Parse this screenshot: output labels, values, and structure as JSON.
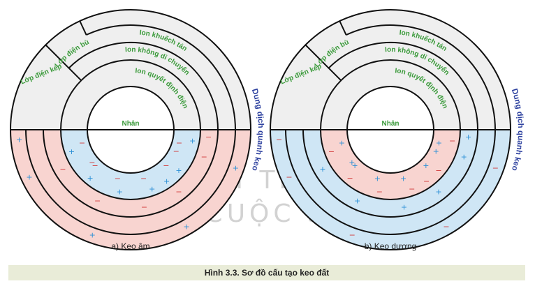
{
  "diagrams": [
    {
      "id": "a",
      "caption": "a) Keo âm",
      "core": "Nhân",
      "labels": {
        "outer_layer": "Lớp điện kép",
        "compensating_layer": "Lớp điện bù",
        "diffuse": "Ion khuếch tán",
        "fixed": "Ion không di chuyển",
        "potential": "Ion quyết định điện",
        "solution": "Dung dịch quanh keo"
      },
      "inner_sign": "−",
      "outer_sign": "+",
      "inner_color": "#cfe6f5",
      "outer_color": "#f8d4d0"
    },
    {
      "id": "b",
      "caption": "b) Keo dương",
      "core": "Nhân",
      "labels": {
        "outer_layer": "Lớp điện kép",
        "compensating_layer": "Lớp điện bù",
        "diffuse": "Ion khuếch tán",
        "fixed": "Ion không di chuyển",
        "potential": "Ion quyết định điện",
        "solution": "Dung dịch quanh keo"
      },
      "inner_sign": "+",
      "outer_sign": "−",
      "inner_color": "#f8d4d0",
      "outer_color": "#cfe6f5"
    }
  ],
  "figure_caption": "Hình 3.3. Sơ đồ cấu tạo keo đất",
  "watermark": [
    "KẾT NỐI TRI THỨC",
    "VỚI CUỘC SỐNG"
  ],
  "colors": {
    "upper_fill": "#efefef",
    "green_text": "#3a9a3a",
    "blue_text": "#2b3f9e",
    "red_sign": "#d23a3a",
    "blue_sign": "#2a8fd6"
  }
}
